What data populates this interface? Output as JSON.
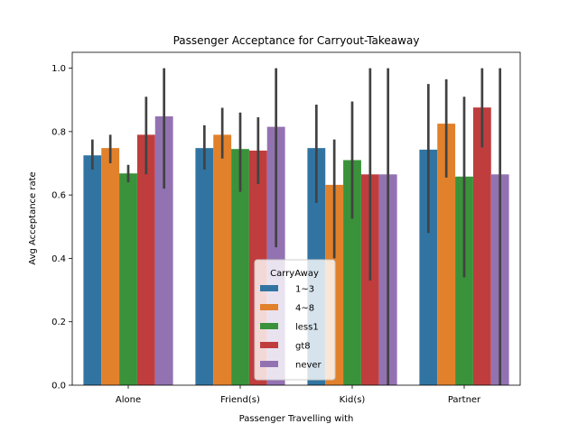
{
  "chart_data": {
    "type": "bar",
    "title": "Passenger Acceptance for Carryout-Takeaway",
    "xlabel": "Passenger Travelling with",
    "ylabel": "Avg Acceptance rate",
    "ylim": [
      0,
      1.05
    ],
    "yticks": [
      "0.0",
      "0.2",
      "0.4",
      "0.6",
      "0.8",
      "1.0"
    ],
    "categories": [
      "Alone",
      "Friend(s)",
      "Kid(s)",
      "Partner"
    ],
    "legend": {
      "title": "CarryAway",
      "placement": "lower-center"
    },
    "grid": false,
    "series": [
      {
        "name": "1~3",
        "color": "#3274a1",
        "values": [
          0.725,
          0.748,
          0.748,
          0.743
        ],
        "ci_low": [
          0.68,
          0.68,
          0.575,
          0.48
        ],
        "ci_high": [
          0.775,
          0.82,
          0.885,
          0.95
        ]
      },
      {
        "name": "4~8",
        "color": "#e1812c",
        "values": [
          0.748,
          0.79,
          0.632,
          0.825
        ],
        "ci_low": [
          0.7,
          0.715,
          0.4,
          0.655
        ],
        "ci_high": [
          0.79,
          0.875,
          0.775,
          0.965
        ]
      },
      {
        "name": "less1",
        "color": "#3a923a",
        "values": [
          0.668,
          0.745,
          0.71,
          0.658
        ],
        "ci_low": [
          0.64,
          0.61,
          0.525,
          0.34
        ],
        "ci_high": [
          0.695,
          0.86,
          0.895,
          0.91
        ]
      },
      {
        "name": "gt8",
        "color": "#c03d3e",
        "values": [
          0.79,
          0.74,
          0.665,
          0.876
        ],
        "ci_low": [
          0.665,
          0.635,
          0.33,
          0.75
        ],
        "ci_high": [
          0.91,
          0.845,
          1.0,
          1.0
        ]
      },
      {
        "name": "never",
        "color": "#9372b2",
        "values": [
          0.848,
          0.815,
          0.665,
          0.665
        ],
        "ci_low": [
          0.62,
          0.435,
          0.0,
          0.0
        ],
        "ci_high": [
          1.0,
          1.0,
          1.0,
          1.0
        ]
      }
    ]
  }
}
